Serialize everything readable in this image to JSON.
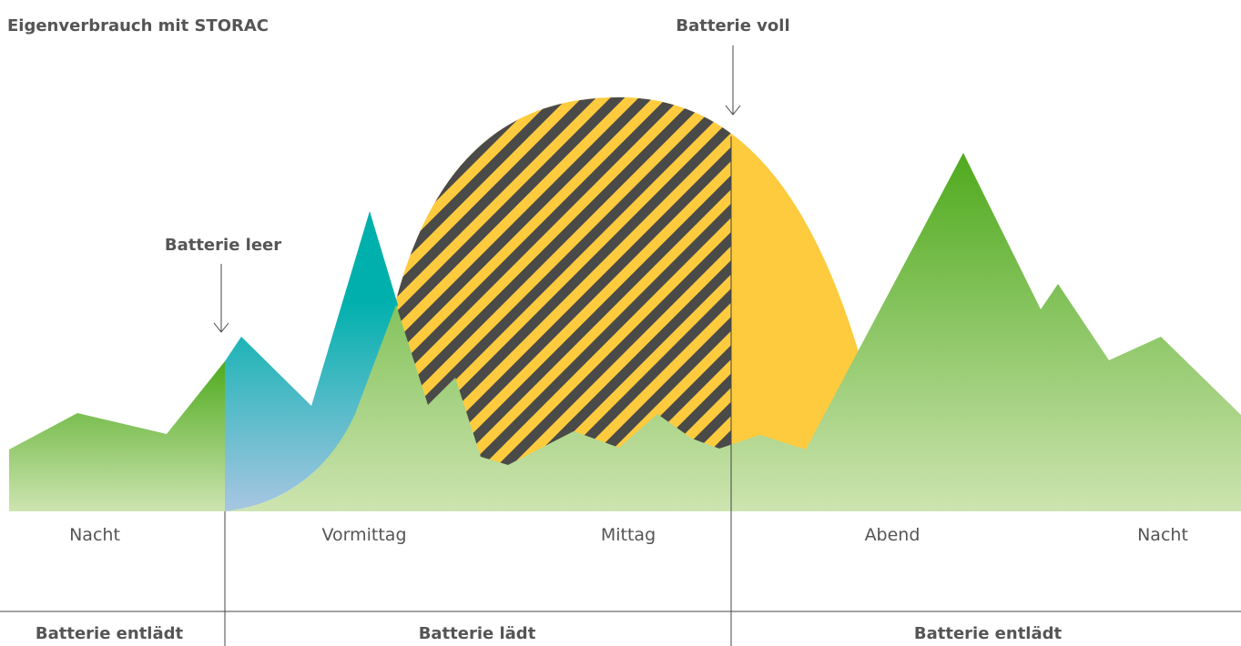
{
  "title": "Eigenverbrauch mit STORAC",
  "annotations": [
    "Batterie leer",
    "Batterie voll"
  ],
  "time_labels": [
    "Nacht",
    "Vormittag",
    "Mittag",
    "Abend",
    "Nacht"
  ],
  "phases": [
    "Batterie entlädt",
    "Batterie lädt",
    "Batterie entlädt"
  ]
}
